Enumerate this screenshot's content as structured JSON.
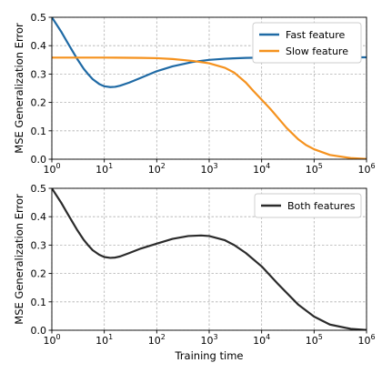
{
  "chart_data": [
    {
      "type": "line",
      "title": "",
      "xlabel": "",
      "ylabel": "MSE Generalization Error",
      "xscale": "log",
      "xlim": [
        1,
        1000000
      ],
      "ylim": [
        0.0,
        0.5
      ],
      "xticks": [
        1,
        10,
        100,
        1000,
        10000,
        100000,
        1000000
      ],
      "yticks": [
        "0.0",
        "0.1",
        "0.2",
        "0.3",
        "0.4",
        "0.5"
      ],
      "grid": true,
      "legend_position": "top-right",
      "series": [
        {
          "name": "Fast feature",
          "color": "#1f6aa5",
          "x": [
            1,
            1.5,
            2,
            3,
            4,
            5,
            6,
            8,
            10,
            13,
            16,
            20,
            30,
            50,
            100,
            200,
            500,
            1000,
            2000,
            5000,
            10000,
            100000,
            1000000
          ],
          "y": [
            0.5,
            0.45,
            0.41,
            0.355,
            0.32,
            0.298,
            0.282,
            0.265,
            0.257,
            0.254,
            0.255,
            0.259,
            0.27,
            0.287,
            0.31,
            0.327,
            0.343,
            0.35,
            0.354,
            0.357,
            0.358,
            0.359,
            0.359
          ]
        },
        {
          "name": "Slow feature",
          "color": "#f5921e",
          "x": [
            1,
            10,
            50,
            100,
            200,
            500,
            1000,
            2000,
            3000,
            5000,
            7000,
            10000,
            15000,
            20000,
            30000,
            50000,
            70000,
            100000,
            200000,
            500000,
            1000000
          ],
          "y": [
            0.358,
            0.358,
            0.357,
            0.356,
            0.353,
            0.346,
            0.338,
            0.322,
            0.305,
            0.27,
            0.24,
            0.21,
            0.175,
            0.148,
            0.11,
            0.07,
            0.05,
            0.035,
            0.015,
            0.004,
            0.001
          ]
        }
      ]
    },
    {
      "type": "line",
      "title": "",
      "xlabel": "Training time",
      "ylabel": "MSE Generalization Error",
      "xscale": "log",
      "xlim": [
        1,
        1000000
      ],
      "ylim": [
        0.0,
        0.5
      ],
      "xticks": [
        1,
        10,
        100,
        1000,
        10000,
        100000,
        1000000
      ],
      "yticks": [
        "0.0",
        "0.1",
        "0.2",
        "0.3",
        "0.4",
        "0.5"
      ],
      "grid": true,
      "legend_position": "top-right",
      "series": [
        {
          "name": "Both features",
          "color": "#2b2b2b",
          "x": [
            1,
            1.5,
            2,
            3,
            4,
            5,
            6,
            8,
            10,
            13,
            16,
            20,
            30,
            50,
            100,
            200,
            400,
            700,
            1000,
            2000,
            3000,
            5000,
            10000,
            20000,
            50000,
            100000,
            200000,
            500000,
            1000000
          ],
          "y": [
            0.5,
            0.45,
            0.41,
            0.355,
            0.32,
            0.298,
            0.282,
            0.266,
            0.258,
            0.255,
            0.256,
            0.26,
            0.272,
            0.288,
            0.305,
            0.322,
            0.332,
            0.334,
            0.332,
            0.317,
            0.3,
            0.272,
            0.225,
            0.165,
            0.09,
            0.048,
            0.02,
            0.005,
            0.001
          ]
        }
      ]
    }
  ]
}
